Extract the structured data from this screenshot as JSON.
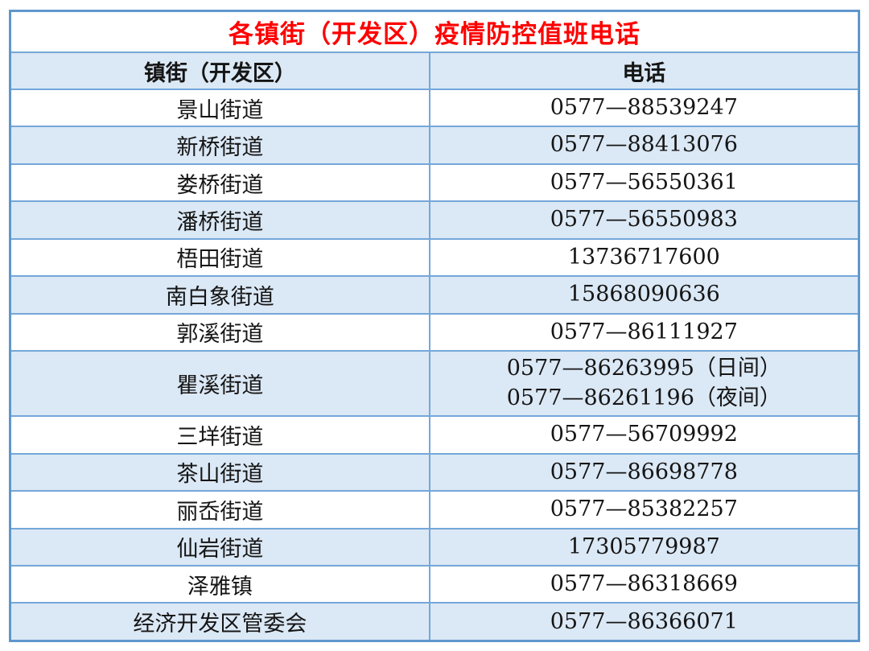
{
  "table": {
    "title": "各镇街（开发区）疫情防控值班电话",
    "title_color": "#ff0000",
    "border_color": "#74a7da",
    "outer_border_color": "#5f97cd",
    "alt_row_color": "#dbe8f5",
    "columns": [
      "镇街（开发区）",
      "电话"
    ],
    "rows": [
      {
        "name": "景山街道",
        "phones": [
          "0577—88539247"
        ]
      },
      {
        "name": "新桥街道",
        "phones": [
          "0577—88413076"
        ]
      },
      {
        "name": "娄桥街道",
        "phones": [
          "0577—56550361"
        ]
      },
      {
        "name": "潘桥街道",
        "phones": [
          "0577—56550983"
        ]
      },
      {
        "name": "梧田街道",
        "phones": [
          "13736717600"
        ]
      },
      {
        "name": "南白象街道",
        "phones": [
          "15868090636"
        ]
      },
      {
        "name": "郭溪街道",
        "phones": [
          "0577—86111927"
        ]
      },
      {
        "name": "瞿溪街道",
        "phones": [
          "0577—86263995（日间）",
          "0577—86261196（夜间）"
        ]
      },
      {
        "name": "三垟街道",
        "phones": [
          "0577—56709992"
        ]
      },
      {
        "name": "茶山街道",
        "phones": [
          "0577—86698778"
        ]
      },
      {
        "name": "丽岙街道",
        "phones": [
          "0577—85382257"
        ]
      },
      {
        "name": "仙岩街道",
        "phones": [
          "17305779987"
        ]
      },
      {
        "name": "泽雅镇",
        "phones": [
          "0577—86318669"
        ]
      },
      {
        "name": "经济开发区管委会",
        "phones": [
          "0577—86366071"
        ]
      }
    ]
  }
}
